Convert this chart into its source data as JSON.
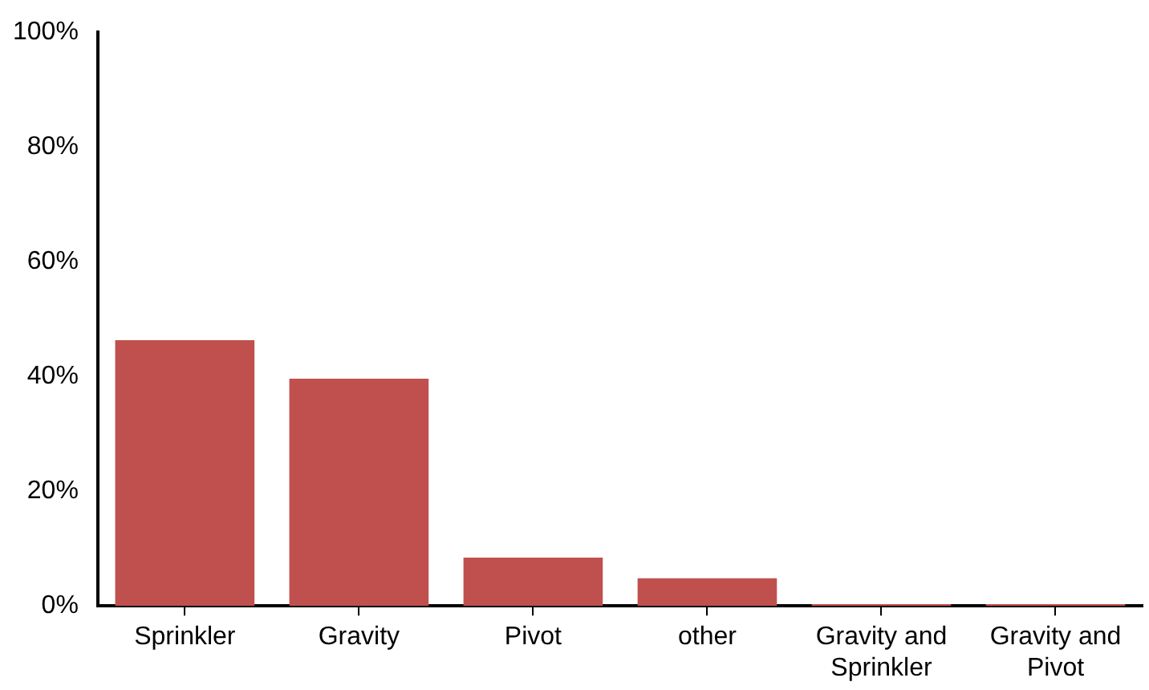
{
  "chart_data": {
    "type": "bar",
    "categories": [
      "Sprinkler",
      "Gravity",
      "Pivot",
      "other",
      "Gravity and Sprinkler",
      "Gravity and Pivot"
    ],
    "values": [
      46.3,
      39.6,
      8.4,
      4.8,
      0.3,
      0.3
    ],
    "color": "#c0504d",
    "ylim": [
      0,
      100
    ],
    "yticks": [
      {
        "value": 0,
        "label": "0%"
      },
      {
        "value": 20,
        "label": "20%"
      },
      {
        "value": 40,
        "label": "40%"
      },
      {
        "value": 60,
        "label": "60%"
      },
      {
        "value": 80,
        "label": "80%"
      },
      {
        "value": 100,
        "label": "100%"
      }
    ],
    "grid": false,
    "legend": false
  }
}
